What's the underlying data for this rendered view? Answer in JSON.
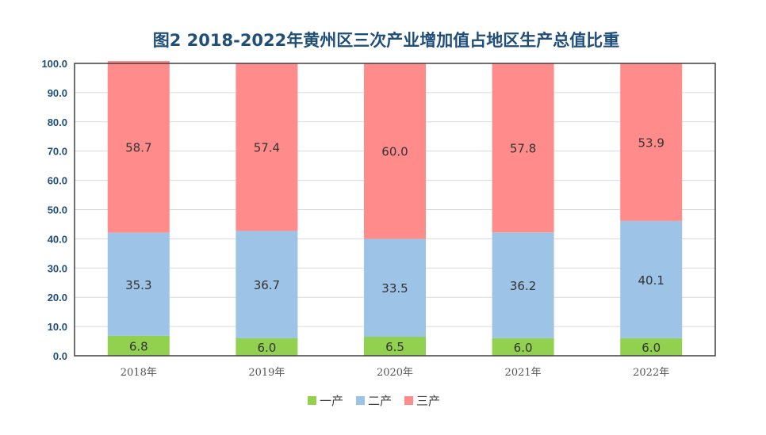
{
  "chart_data": {
    "type": "bar",
    "stacked": true,
    "title": "图2  2018-2022年黄州区三次产业增加值占地区生产总值比重",
    "xlabel": "",
    "ylabel": "",
    "categories": [
      "2018年",
      "2019年",
      "2020年",
      "2021年",
      "2022年"
    ],
    "ylim": [
      0,
      100
    ],
    "yticks": [
      "0.0",
      "10.0",
      "20.0",
      "30.0",
      "40.0",
      "50.0",
      "60.0",
      "70.0",
      "80.0",
      "90.0",
      "100.0"
    ],
    "grid": true,
    "legend_position": "bottom",
    "series": [
      {
        "name": "一产",
        "color": "#92d050",
        "values": [
          6.8,
          6.0,
          6.5,
          6.0,
          6.0
        ],
        "labels": [
          "6.8",
          "6.0",
          "6.5",
          "6.0",
          "6.0"
        ]
      },
      {
        "name": "二产",
        "color": "#9dc3e6",
        "values": [
          35.3,
          36.7,
          33.5,
          36.2,
          40.1
        ],
        "labels": [
          "35.3",
          "36.7",
          "33.5",
          "36.2",
          "40.1"
        ]
      },
      {
        "name": "三产",
        "color": "#ff8b8b",
        "values": [
          58.7,
          57.4,
          60.0,
          57.8,
          53.9
        ],
        "labels": [
          "58.7",
          "57.4",
          "60.0",
          "57.8",
          "53.9"
        ]
      }
    ]
  }
}
